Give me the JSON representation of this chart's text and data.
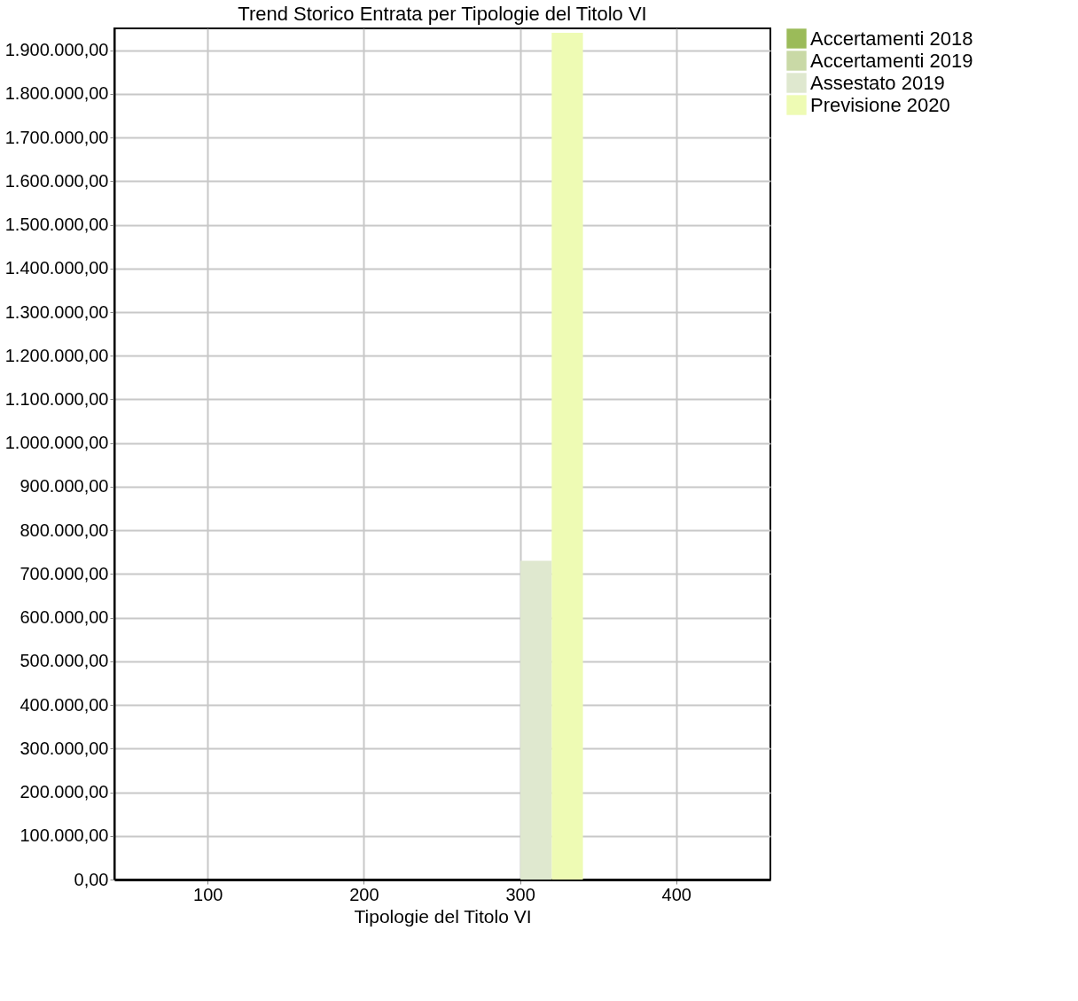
{
  "chart_data": {
    "type": "bar",
    "title": "Trend Storico Entrata per Tipologie del Titolo VI",
    "xlabel": "Tipologie del Titolo VI",
    "categories": [
      "100",
      "200",
      "300",
      "400"
    ],
    "series": [
      {
        "name": "Accertamenti 2018",
        "color": "#9bbb59",
        "values": [
          0,
          0,
          0,
          0
        ]
      },
      {
        "name": "Accertamenti 2019",
        "color": "#c9d9a6",
        "values": [
          0,
          0,
          0,
          0
        ]
      },
      {
        "name": "Assestato 2019",
        "color": "#dfe8cf",
        "values": [
          0,
          0,
          730000,
          0
        ]
      },
      {
        "name": "Previsione 2020",
        "color": "#eefbb4",
        "values": [
          0,
          0,
          1940000,
          0
        ]
      }
    ],
    "ylim": [
      0,
      1950000
    ],
    "yticks": [
      {
        "value": 0,
        "label": "0,00"
      },
      {
        "value": 100000,
        "label": "100.000,00"
      },
      {
        "value": 200000,
        "label": "200.000,00"
      },
      {
        "value": 300000,
        "label": "300.000,00"
      },
      {
        "value": 400000,
        "label": "400.000,00"
      },
      {
        "value": 500000,
        "label": "500.000,00"
      },
      {
        "value": 600000,
        "label": "600.000,00"
      },
      {
        "value": 700000,
        "label": "700.000,00"
      },
      {
        "value": 800000,
        "label": "800.000,00"
      },
      {
        "value": 900000,
        "label": "900.000,00"
      },
      {
        "value": 1000000,
        "label": "1.000.000,00"
      },
      {
        "value": 1100000,
        "label": "1.100.000,00"
      },
      {
        "value": 1200000,
        "label": "1.200.000,00"
      },
      {
        "value": 1300000,
        "label": "1.300.000,00"
      },
      {
        "value": 1400000,
        "label": "1.400.000,00"
      },
      {
        "value": 1500000,
        "label": "1.500.000,00"
      },
      {
        "value": 1600000,
        "label": "1.600.000,00"
      },
      {
        "value": 1700000,
        "label": "1.700.000,00"
      },
      {
        "value": 1800000,
        "label": "1.800.000,00"
      },
      {
        "value": 1900000,
        "label": "1.900.000,00"
      }
    ],
    "grid": true,
    "legend": "top right"
  }
}
